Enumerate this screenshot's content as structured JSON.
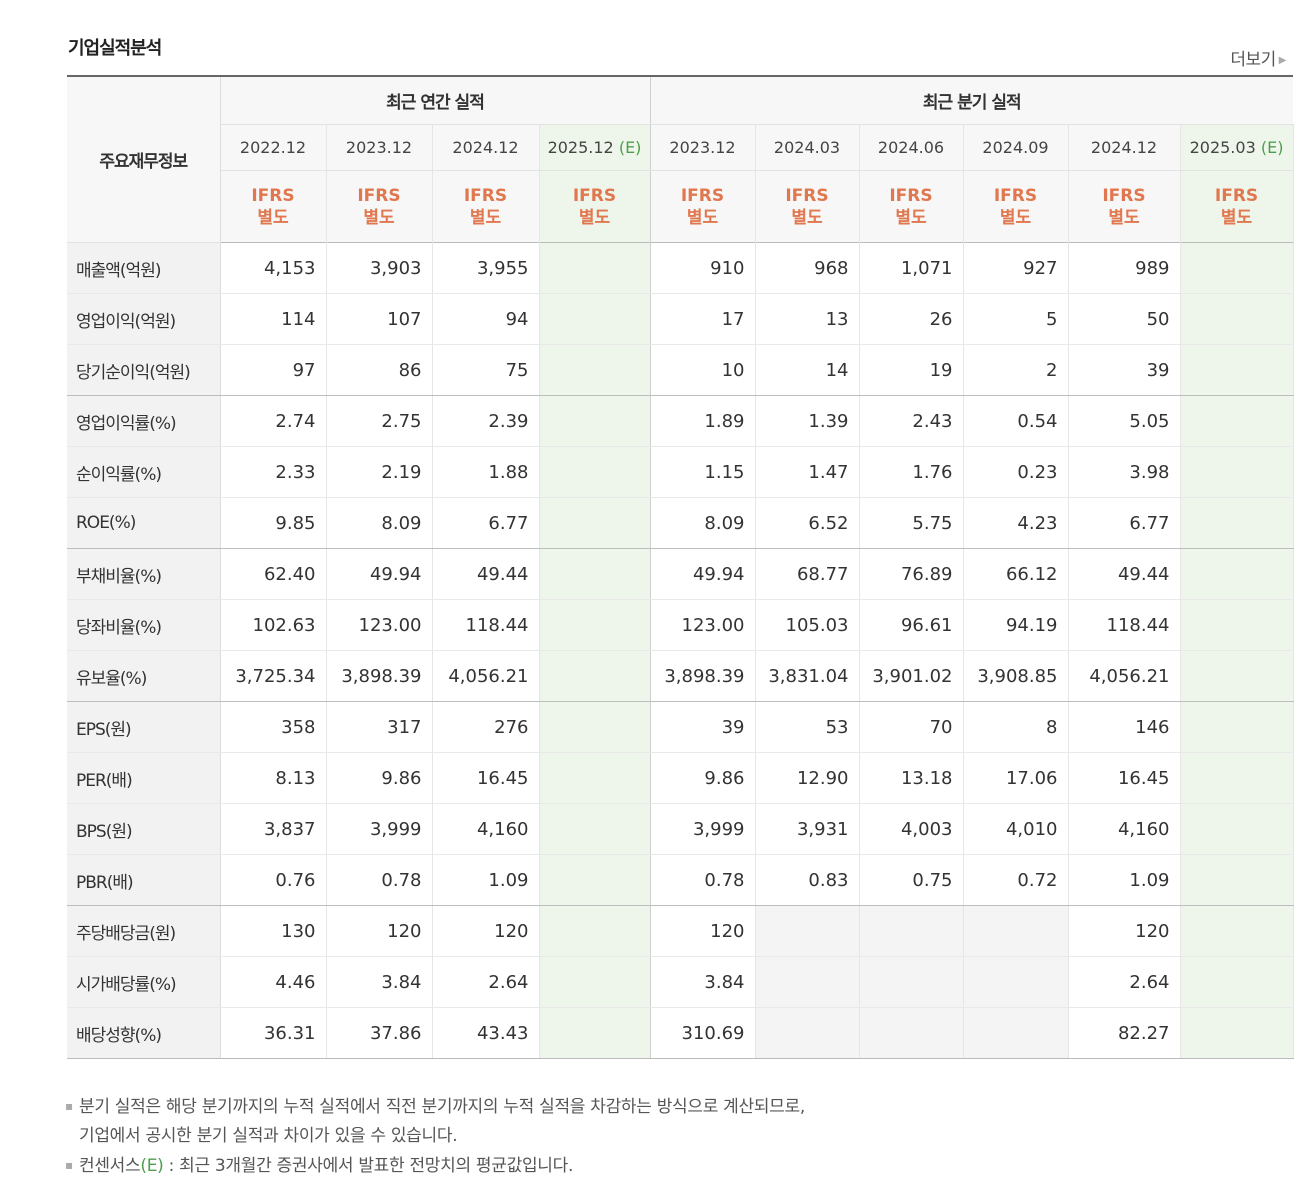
{
  "title": "기업실적분석",
  "more_label": "더보기",
  "header": {
    "label_head": "주요재무정보",
    "annual_group": "최근 연간 실적",
    "quarter_group": "최근 분기 실적",
    "estimate_mark": "(E)",
    "ifrs_line1": "IFRS",
    "ifrs_line2": "별도"
  },
  "annual_periods": [
    "2022.12",
    "2023.12",
    "2024.12",
    "2025.12"
  ],
  "quarter_periods": [
    "2023.12",
    "2024.03",
    "2024.06",
    "2024.09",
    "2024.12",
    "2025.03"
  ],
  "rows": [
    {
      "label": "매출액(억원)",
      "annual": [
        "4,153",
        "3,903",
        "3,955",
        ""
      ],
      "quarter": [
        "910",
        "968",
        "1,071",
        "927",
        "989",
        ""
      ],
      "sep": false
    },
    {
      "label": "영업이익(억원)",
      "annual": [
        "114",
        "107",
        "94",
        ""
      ],
      "quarter": [
        "17",
        "13",
        "26",
        "5",
        "50",
        ""
      ],
      "sep": false
    },
    {
      "label": "당기순이익(억원)",
      "annual": [
        "97",
        "86",
        "75",
        ""
      ],
      "quarter": [
        "10",
        "14",
        "19",
        "2",
        "39",
        ""
      ],
      "sep": true
    },
    {
      "label": "영업이익률(%)",
      "annual": [
        "2.74",
        "2.75",
        "2.39",
        ""
      ],
      "quarter": [
        "1.89",
        "1.39",
        "2.43",
        "0.54",
        "5.05",
        ""
      ],
      "sep": false
    },
    {
      "label": "순이익률(%)",
      "annual": [
        "2.33",
        "2.19",
        "1.88",
        ""
      ],
      "quarter": [
        "1.15",
        "1.47",
        "1.76",
        "0.23",
        "3.98",
        ""
      ],
      "sep": false
    },
    {
      "label": "ROE(%)",
      "annual": [
        "9.85",
        "8.09",
        "6.77",
        ""
      ],
      "quarter": [
        "8.09",
        "6.52",
        "5.75",
        "4.23",
        "6.77",
        ""
      ],
      "sep": true
    },
    {
      "label": "부채비율(%)",
      "annual": [
        "62.40",
        "49.94",
        "49.44",
        ""
      ],
      "quarter": [
        "49.94",
        "68.77",
        "76.89",
        "66.12",
        "49.44",
        ""
      ],
      "sep": false
    },
    {
      "label": "당좌비율(%)",
      "annual": [
        "102.63",
        "123.00",
        "118.44",
        ""
      ],
      "quarter": [
        "123.00",
        "105.03",
        "96.61",
        "94.19",
        "118.44",
        ""
      ],
      "sep": false
    },
    {
      "label": "유보율(%)",
      "annual": [
        "3,725.34",
        "3,898.39",
        "4,056.21",
        ""
      ],
      "quarter": [
        "3,898.39",
        "3,831.04",
        "3,901.02",
        "3,908.85",
        "4,056.21",
        ""
      ],
      "sep": true
    },
    {
      "label": "EPS(원)",
      "annual": [
        "358",
        "317",
        "276",
        ""
      ],
      "quarter": [
        "39",
        "53",
        "70",
        "8",
        "146",
        ""
      ],
      "sep": false
    },
    {
      "label": "PER(배)",
      "annual": [
        "8.13",
        "9.86",
        "16.45",
        ""
      ],
      "quarter": [
        "9.86",
        "12.90",
        "13.18",
        "17.06",
        "16.45",
        ""
      ],
      "sep": false
    },
    {
      "label": "BPS(원)",
      "annual": [
        "3,837",
        "3,999",
        "4,160",
        ""
      ],
      "quarter": [
        "3,999",
        "3,931",
        "4,003",
        "4,010",
        "4,160",
        ""
      ],
      "sep": false
    },
    {
      "label": "PBR(배)",
      "annual": [
        "0.76",
        "0.78",
        "1.09",
        ""
      ],
      "quarter": [
        "0.78",
        "0.83",
        "0.75",
        "0.72",
        "1.09",
        ""
      ],
      "sep": true
    },
    {
      "label": "주당배당금(원)",
      "annual": [
        "130",
        "120",
        "120",
        ""
      ],
      "quarter": [
        "120",
        "",
        "",
        "",
        "120",
        ""
      ],
      "sep": false
    },
    {
      "label": "시가배당률(%)",
      "annual": [
        "4.46",
        "3.84",
        "2.64",
        ""
      ],
      "quarter": [
        "3.84",
        "",
        "",
        "",
        "2.64",
        ""
      ],
      "sep": false
    },
    {
      "label": "배당성향(%)",
      "annual": [
        "36.31",
        "37.86",
        "43.43",
        ""
      ],
      "quarter": [
        "310.69",
        "",
        "",
        "",
        "82.27",
        ""
      ],
      "sep": false
    }
  ],
  "notes": {
    "line1": "분기 실적은 해당 분기까지의 누적 실적에서 직전 분기까지의 누적 실적을 차감하는 방식으로 계산되므로,",
    "line2": "기업에서 공시한 분기 실적과 차이가 있을 수 있습니다.",
    "line3_prefix": "컨센서스",
    "line3_mark": "(E)",
    "line3_suffix": " : 최근 3개월간 증권사에서 발표한 전망치의 평균값입니다."
  }
}
